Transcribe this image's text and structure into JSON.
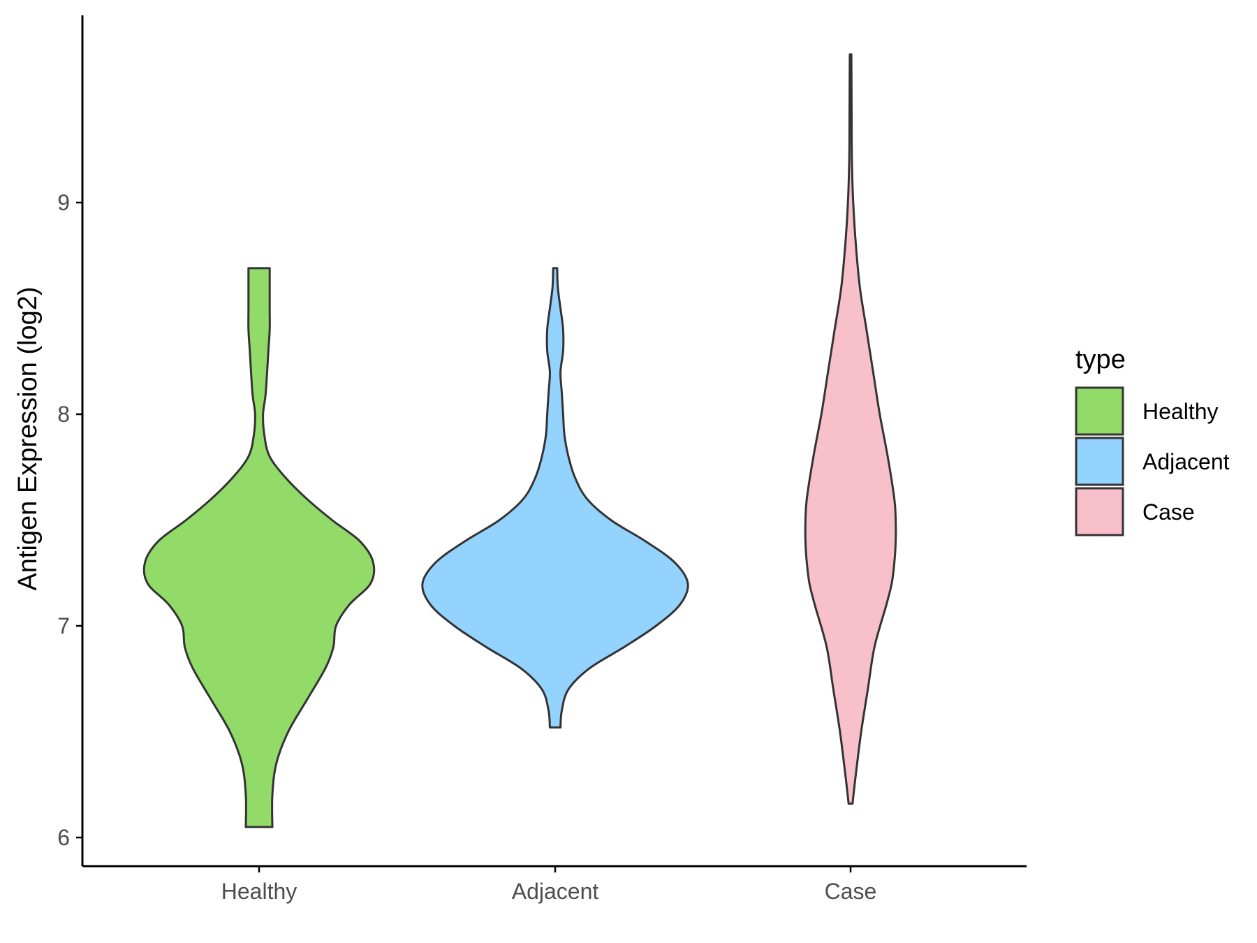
{
  "chart_data": {
    "type": "violin",
    "title": "",
    "xlabel": "",
    "ylabel": "Antigen Expression (log2)",
    "ylim": [
      5.88,
      9.95
    ],
    "yticks": [
      6,
      7,
      8,
      9
    ],
    "ytick_labels": [
      "6",
      "7",
      "8",
      "9"
    ],
    "categories": [
      "Healthy",
      "Adjacent",
      "Case"
    ],
    "legend": {
      "title": "type",
      "position": "right",
      "entries": [
        "Healthy",
        "Adjacent",
        "Case"
      ]
    },
    "grid": false,
    "series": [
      {
        "name": "Healthy",
        "color": "#93db68",
        "min": 6.05,
        "max": 8.69,
        "profile": [
          [
            6.05,
            0.1
          ],
          [
            6.2,
            0.1
          ],
          [
            6.35,
            0.13
          ],
          [
            6.5,
            0.22
          ],
          [
            6.65,
            0.36
          ],
          [
            6.8,
            0.5
          ],
          [
            6.9,
            0.56
          ],
          [
            7.0,
            0.58
          ],
          [
            7.1,
            0.68
          ],
          [
            7.2,
            0.84
          ],
          [
            7.3,
            0.86
          ],
          [
            7.4,
            0.76
          ],
          [
            7.5,
            0.55
          ],
          [
            7.6,
            0.36
          ],
          [
            7.7,
            0.2
          ],
          [
            7.8,
            0.08
          ],
          [
            7.9,
            0.04
          ],
          [
            8.0,
            0.03
          ],
          [
            8.1,
            0.05
          ],
          [
            8.3,
            0.07
          ],
          [
            8.4,
            0.08
          ],
          [
            8.5,
            0.08
          ],
          [
            8.69,
            0.08
          ]
        ]
      },
      {
        "name": "Adjacent",
        "color": "#94d3fe",
        "min": 6.52,
        "max": 8.69,
        "profile": [
          [
            6.52,
            0.04
          ],
          [
            6.6,
            0.05
          ],
          [
            6.7,
            0.1
          ],
          [
            6.8,
            0.26
          ],
          [
            6.9,
            0.52
          ],
          [
            7.0,
            0.76
          ],
          [
            7.1,
            0.94
          ],
          [
            7.2,
            1.0
          ],
          [
            7.3,
            0.9
          ],
          [
            7.4,
            0.68
          ],
          [
            7.5,
            0.42
          ],
          [
            7.6,
            0.24
          ],
          [
            7.7,
            0.15
          ],
          [
            7.8,
            0.1
          ],
          [
            7.9,
            0.07
          ],
          [
            8.0,
            0.06
          ],
          [
            8.1,
            0.05
          ],
          [
            8.2,
            0.04
          ],
          [
            8.3,
            0.06
          ],
          [
            8.4,
            0.06
          ],
          [
            8.5,
            0.04
          ],
          [
            8.6,
            0.02
          ],
          [
            8.69,
            0.015
          ]
        ]
      },
      {
        "name": "Case",
        "color": "#f7c0cb",
        "min": 6.16,
        "max": 9.7,
        "profile": [
          [
            6.16,
            0.015
          ],
          [
            6.3,
            0.04
          ],
          [
            6.5,
            0.08
          ],
          [
            6.7,
            0.13
          ],
          [
            6.9,
            0.18
          ],
          [
            7.1,
            0.27
          ],
          [
            7.2,
            0.31
          ],
          [
            7.3,
            0.33
          ],
          [
            7.4,
            0.34
          ],
          [
            7.5,
            0.34
          ],
          [
            7.6,
            0.33
          ],
          [
            7.8,
            0.28
          ],
          [
            8.0,
            0.22
          ],
          [
            8.2,
            0.17
          ],
          [
            8.4,
            0.12
          ],
          [
            8.6,
            0.07
          ],
          [
            8.8,
            0.04
          ],
          [
            9.0,
            0.02
          ],
          [
            9.2,
            0.01
          ],
          [
            9.4,
            0.008
          ],
          [
            9.7,
            0.006
          ]
        ]
      }
    ]
  }
}
